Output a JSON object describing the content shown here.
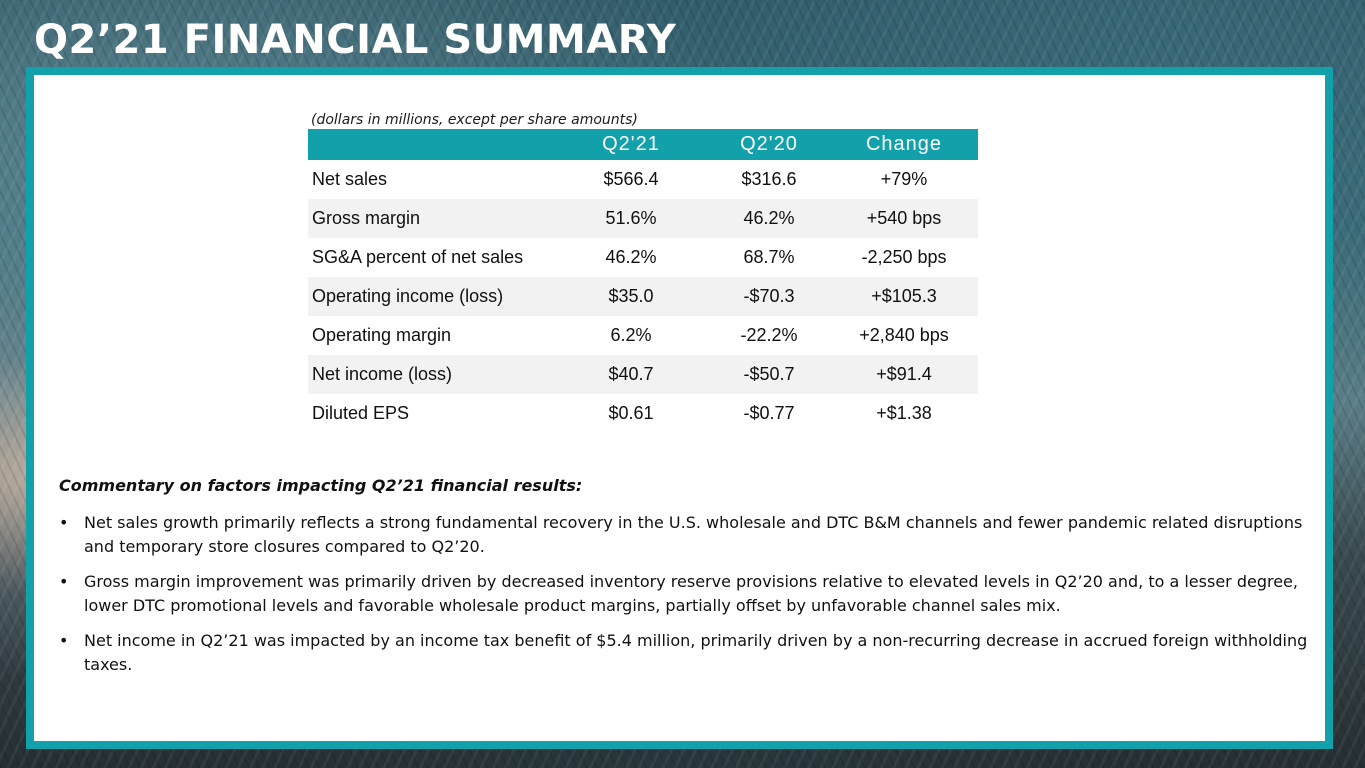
{
  "page": {
    "title": "Q2’21 FINANCIAL SUMMARY"
  },
  "table": {
    "note": "(dollars in millions, except per share amounts)",
    "headers": [
      "",
      "Q2'21",
      "Q2'20",
      "Change"
    ],
    "rows": [
      [
        "Net sales",
        "$566.4",
        "$316.6",
        "+79%"
      ],
      [
        "Gross margin",
        "51.6%",
        "46.2%",
        "+540 bps"
      ],
      [
        "SG&A percent of net sales",
        "46.2%",
        "68.7%",
        "-2,250 bps"
      ],
      [
        "Operating income (loss)",
        "$35.0",
        "-$70.3",
        "+$105.3"
      ],
      [
        "Operating margin",
        "6.2%",
        "-22.2%",
        "+2,840 bps"
      ],
      [
        "Net income (loss)",
        "$40.7",
        "-$50.7",
        "+$91.4"
      ],
      [
        "Diluted EPS",
        "$0.61",
        "-$0.77",
        "+$1.38"
      ]
    ]
  },
  "commentary": {
    "heading": "Commentary on factors impacting Q2’21 financial results:",
    "bullet_symbol": "•",
    "bullets": [
      "Net sales growth primarily reflects a strong fundamental recovery in the U.S. wholesale and DTC B&M channels and fewer pandemic related disruptions and temporary store closures compared to Q2’20.",
      "Gross margin improvement was primarily driven by decreased inventory reserve provisions relative to elevated levels in Q2’20 and, to a lesser degree, lower DTC promotional levels and favorable wholesale product margins, partially offset by unfavorable channel sales mix.",
      "Net income in Q2’21 was impacted by an income tax benefit of $5.4 million, primarily driven by a non-recurring decrease in accrued foreign withholding taxes."
    ]
  },
  "colors": {
    "accent": "#12a0aa",
    "row_alt": "#f2f2f2",
    "text": "#111111"
  }
}
